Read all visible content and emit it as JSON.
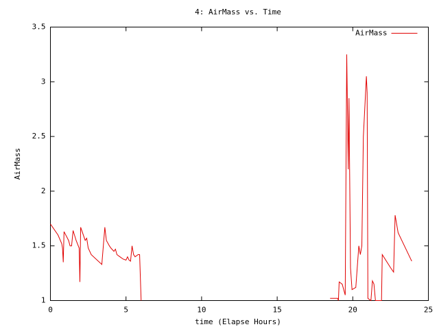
{
  "chart_data": {
    "type": "line",
    "title": "4: AirMass vs. Time",
    "x_label": "time (Elapse Hours)",
    "y_label": "AirMass",
    "x": [
      0,
      0.5,
      0.75,
      0.8,
      0.85,
      0.9,
      1.2,
      1.3,
      1.4,
      1.5,
      1.7,
      1.9,
      1.95,
      2.0,
      2.3,
      2.4,
      2.5,
      2.7,
      3.4,
      3.6,
      3.7,
      3.9,
      4.0,
      4.2,
      4.3,
      4.4,
      4.6,
      4.8,
      5.0,
      5.1,
      5.2,
      5.3,
      5.4,
      5.5,
      5.6,
      5.8,
      5.9,
      6.0,
      12.0,
      18.5,
      19.0,
      19.05,
      19.1,
      19.3,
      19.5,
      19.6,
      19.7,
      19.75,
      19.85,
      19.95,
      20.2,
      20.4,
      20.5,
      20.6,
      20.7,
      20.9,
      20.95,
      21.0,
      21.2,
      21.3,
      21.4,
      21.5,
      21.9,
      21.95,
      22.5,
      22.7,
      22.8,
      23.0,
      23.9
    ],
    "series": [
      {
        "name": "AirMass",
        "color": "#e00000",
        "values": [
          1.7,
          1.6,
          1.52,
          1.48,
          1.35,
          1.63,
          1.55,
          1.5,
          1.5,
          1.64,
          1.55,
          1.48,
          1.17,
          1.67,
          1.55,
          1.57,
          1.48,
          1.42,
          1.33,
          1.67,
          1.55,
          1.5,
          1.48,
          1.45,
          1.47,
          1.42,
          1.4,
          1.38,
          1.37,
          1.4,
          1.37,
          1.36,
          1.5,
          1.42,
          1.4,
          1.42,
          1.42,
          1.0,
          null,
          1.02,
          1.02,
          1.0,
          1.17,
          1.15,
          1.05,
          3.25,
          2.2,
          2.85,
          1.3,
          1.1,
          1.12,
          1.5,
          1.42,
          1.5,
          2.5,
          3.05,
          2.9,
          1.02,
          1.0,
          1.18,
          1.15,
          1.0,
          1.0,
          1.42,
          1.3,
          1.26,
          1.78,
          1.62,
          1.36
        ]
      }
    ],
    "xlim": [
      0,
      25
    ],
    "xticks": [
      0,
      5,
      10,
      15,
      20,
      25
    ],
    "ylim": [
      1,
      3.5
    ],
    "yticks": [
      1,
      1.5,
      2,
      2.5,
      3,
      3.5
    ],
    "legend": "top-right",
    "grid": false
  }
}
